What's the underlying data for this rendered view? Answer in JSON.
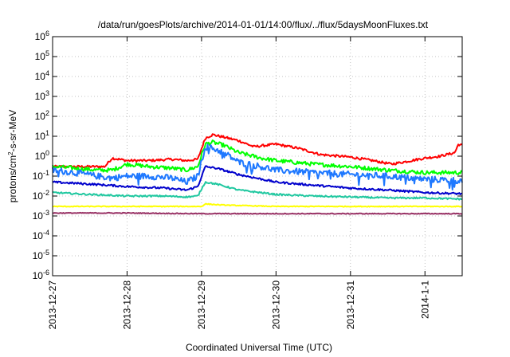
{
  "chart_data": {
    "type": "line",
    "title": "/data/run/goesPlots/archive/2014-01-01/14:00/flux/../flux/5daysMoonFluxes.txt",
    "xlabel": "Coordinated Universal Time (UTC)",
    "ylabel": "protons/cm²-s-sr-MeV",
    "y_scale": "log",
    "ylim": [
      1e-06,
      1000000.0
    ],
    "x_range_days": [
      0,
      5.5
    ],
    "x_ticks": [
      {
        "day": 0,
        "label": "2013-12-27"
      },
      {
        "day": 1,
        "label": "2013-12-28"
      },
      {
        "day": 2,
        "label": "2013-12-29"
      },
      {
        "day": 3,
        "label": "2013-12-30"
      },
      {
        "day": 4,
        "label": "2013-12-31"
      },
      {
        "day": 5,
        "label": "2014-1-1"
      }
    ],
    "y_ticks": [
      {
        "base": "10",
        "exp": "-6"
      },
      {
        "base": "10",
        "exp": "-5"
      },
      {
        "base": "10",
        "exp": "-4"
      },
      {
        "base": "10",
        "exp": "-3"
      },
      {
        "base": "10",
        "exp": "-2"
      },
      {
        "base": "10",
        "exp": "-1"
      },
      {
        "base": "10",
        "exp": "0"
      },
      {
        "base": "10",
        "exp": "1"
      },
      {
        "base": "10",
        "exp": "2"
      },
      {
        "base": "10",
        "exp": "3"
      },
      {
        "base": "10",
        "exp": "4"
      },
      {
        "base": "10",
        "exp": "5"
      },
      {
        "base": "10",
        "exp": "6"
      }
    ],
    "grid": true,
    "legend": "none",
    "series": [
      {
        "color": "#ff0000",
        "noise": 0.06,
        "x": [
          0,
          0.4,
          0.7,
          0.8,
          1.0,
          1.3,
          1.6,
          1.8,
          1.95,
          2.05,
          2.15,
          2.3,
          2.5,
          2.7,
          3.0,
          3.3,
          3.6,
          4.0,
          4.3,
          4.55,
          4.7,
          5.0,
          5.2,
          5.4,
          5.45,
          5.5
        ],
        "y": [
          0.3,
          0.3,
          0.3,
          0.8,
          0.6,
          0.6,
          0.7,
          0.6,
          0.7,
          8.0,
          12.0,
          9.0,
          6.0,
          3.0,
          4.0,
          2.5,
          1.2,
          0.9,
          0.6,
          0.4,
          0.5,
          0.8,
          1.0,
          1.5,
          4.0,
          3.5
        ]
      },
      {
        "color": "#00ff00",
        "noise": 0.1,
        "x": [
          0,
          0.3,
          0.6,
          0.8,
          1.0,
          1.3,
          1.6,
          1.8,
          1.95,
          2.05,
          2.15,
          2.3,
          2.5,
          2.8,
          3.0,
          3.5,
          4.0,
          4.5,
          5.0,
          5.5
        ],
        "y": [
          0.3,
          0.25,
          0.2,
          0.2,
          0.4,
          0.3,
          0.25,
          0.2,
          0.3,
          4.0,
          5.0,
          3.5,
          1.5,
          0.8,
          0.6,
          0.4,
          0.3,
          0.2,
          0.15,
          0.15
        ]
      },
      {
        "color": "#1e78ff",
        "noise": 0.16,
        "x": [
          0,
          0.3,
          0.6,
          0.8,
          1.0,
          1.3,
          1.6,
          1.8,
          1.95,
          2.05,
          2.15,
          2.3,
          2.5,
          2.8,
          3.0,
          3.5,
          4.0,
          4.5,
          5.0,
          5.5
        ],
        "y": [
          0.2,
          0.15,
          0.1,
          0.08,
          0.1,
          0.1,
          0.08,
          0.05,
          0.1,
          3.0,
          2.5,
          1.5,
          0.5,
          0.3,
          0.2,
          0.15,
          0.12,
          0.1,
          0.07,
          0.06
        ]
      },
      {
        "color": "#0000cc",
        "noise": 0.05,
        "x": [
          0,
          0.5,
          1.0,
          1.5,
          1.8,
          1.95,
          2.05,
          2.2,
          2.5,
          3.0,
          3.5,
          4.0,
          4.5,
          5.0,
          5.5
        ],
        "y": [
          0.05,
          0.04,
          0.03,
          0.025,
          0.02,
          0.03,
          0.3,
          0.25,
          0.12,
          0.05,
          0.035,
          0.025,
          0.02,
          0.015,
          0.013
        ]
      },
      {
        "color": "#20c8a0",
        "noise": 0.04,
        "x": [
          0,
          0.5,
          1.0,
          1.5,
          1.8,
          1.95,
          2.05,
          2.2,
          2.5,
          3.0,
          3.5,
          4.0,
          4.5,
          5.0,
          5.5
        ],
        "y": [
          0.015,
          0.012,
          0.01,
          0.01,
          0.009,
          0.01,
          0.05,
          0.04,
          0.02,
          0.012,
          0.01,
          0.009,
          0.008,
          0.008,
          0.007
        ]
      },
      {
        "color": "#ffff00",
        "noise": 0.02,
        "x": [
          0,
          1.0,
          1.8,
          2.0,
          2.05,
          2.3,
          3.0,
          4.0,
          5.0,
          5.5
        ],
        "y": [
          0.003,
          0.003,
          0.003,
          0.003,
          0.004,
          0.0035,
          0.003,
          0.003,
          0.003,
          0.003
        ]
      },
      {
        "color": "#993366",
        "noise": 0.02,
        "x": [
          0,
          1.0,
          2.0,
          3.0,
          4.0,
          5.0,
          5.5
        ],
        "y": [
          0.0014,
          0.0014,
          0.0013,
          0.0013,
          0.0013,
          0.0013,
          0.0013
        ]
      }
    ]
  }
}
